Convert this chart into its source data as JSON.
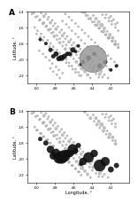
{
  "longitude_range": [
    -51,
    -40
  ],
  "latitude_range": [
    -23,
    -14
  ],
  "xticks": [
    -50,
    -48,
    -46,
    -44,
    -42
  ],
  "yticks": [
    -22,
    -20,
    -18,
    -16,
    -14
  ],
  "xlabel": "Longitude, °",
  "ylabel": "Latitude, °",
  "panel_A_label": "A",
  "panel_B_label": "B",
  "background_color": "#ffffff",
  "gray_color": "#aaaaaa",
  "black_color": "#111111",
  "cities_A_gray_lon": [
    -50.5,
    -50.1,
    -49.7,
    -49.3,
    -49.0,
    -48.7,
    -48.4,
    -48.1,
    -47.8,
    -47.5,
    -47.2,
    -46.9,
    -46.6,
    -46.3,
    -46.0,
    -45.7,
    -45.4,
    -45.1,
    -44.8,
    -44.5,
    -44.2,
    -43.9,
    -43.6,
    -43.3,
    -43.0,
    -42.7,
    -42.4,
    -42.1,
    -41.8,
    -41.5,
    -41.2,
    -49.5,
    -49.2,
    -48.8,
    -48.5,
    -48.2,
    -47.9,
    -47.5,
    -47.2,
    -46.9,
    -46.5,
    -46.2,
    -45.9,
    -45.5,
    -45.2,
    -44.9,
    -44.5,
    -44.2,
    -43.9,
    -43.5,
    -43.2,
    -42.9,
    -42.5,
    -42.2,
    -41.9,
    -41.5,
    -50.2,
    -49.9,
    -49.5,
    -49.2,
    -48.8,
    -48.5,
    -48.2,
    -47.8,
    -47.5,
    -47.2,
    -46.8,
    -46.5,
    -46.2,
    -45.8,
    -45.5,
    -45.2,
    -44.8,
    -44.5,
    -44.2,
    -43.8,
    -43.5,
    -43.2,
    -42.8,
    -42.5,
    -42.2,
    -41.8,
    -41.5,
    -41.2,
    -49.0,
    -48.7,
    -48.3,
    -48.0,
    -47.7,
    -47.3,
    -47.0,
    -46.7,
    -46.3,
    -46.0,
    -45.7,
    -45.3,
    -45.0,
    -44.7,
    -44.3,
    -44.0,
    -43.7,
    -43.3,
    -43.0,
    -42.7,
    -42.3,
    -42.0,
    -41.7,
    -41.3,
    -50.3,
    -49.9,
    -49.6,
    -49.2,
    -48.9,
    -48.5,
    -48.2,
    -47.8,
    -47.5,
    -47.1,
    -46.8,
    -46.4,
    -46.1,
    -45.7,
    -45.4,
    -45.0,
    -44.7,
    -44.3,
    -44.0,
    -43.6,
    -43.3,
    -42.9,
    -42.6,
    -42.2,
    -41.9,
    -41.5,
    -41.2,
    -50.0,
    -49.6,
    -49.3,
    -48.9,
    -48.6,
    -48.2,
    -47.9,
    -47.5,
    -47.2,
    -46.8,
    -46.5,
    -46.1,
    -45.8,
    -45.4,
    -45.1,
    -44.7,
    -44.4,
    -44.0,
    -43.7,
    -43.3,
    -43.0,
    -42.6,
    -42.3,
    -41.9,
    -41.6,
    -41.2,
    -49.7,
    -49.3,
    -49.0,
    -48.6,
    -48.3,
    -47.9,
    -47.6,
    -47.2,
    -46.9,
    -46.5,
    -46.2,
    -45.8,
    -45.5,
    -45.1,
    -44.8,
    -44.4,
    -44.1,
    -43.7,
    -43.4,
    -43.0,
    -42.7,
    -42.3,
    -42.0,
    -41.6,
    -41.3,
    -48.5,
    -48.2,
    -47.8,
    -47.5,
    -47.2,
    -46.8,
    -46.5,
    -46.2,
    -45.8,
    -45.5,
    -45.2,
    -44.8,
    -44.5,
    -44.2,
    -43.8,
    -43.5,
    -43.2,
    -42.8,
    -42.5,
    -42.2,
    -41.8,
    -41.5
  ],
  "cities_A_gray_lat": [
    -14.3,
    -14.7,
    -15.1,
    -15.5,
    -15.9,
    -16.3,
    -16.7,
    -17.1,
    -17.5,
    -17.9,
    -18.3,
    -18.7,
    -19.1,
    -19.5,
    -19.9,
    -20.3,
    -20.7,
    -21.1,
    -21.5,
    -21.9,
    -22.3,
    -14.5,
    -14.9,
    -15.3,
    -15.7,
    -16.1,
    -16.5,
    -16.9,
    -17.3,
    -17.7,
    -18.1,
    -14.2,
    -14.6,
    -15.0,
    -15.4,
    -15.8,
    -16.2,
    -16.6,
    -17.0,
    -17.4,
    -17.8,
    -18.2,
    -18.6,
    -19.0,
    -19.4,
    -19.8,
    -20.2,
    -20.6,
    -21.0,
    -21.4,
    -21.8,
    -22.2,
    -14.4,
    -14.8,
    -15.2,
    -15.6,
    -16.0,
    -16.4,
    -16.8,
    -17.2,
    -17.6,
    -18.0,
    -18.4,
    -18.8,
    -19.2,
    -19.6,
    -20.0,
    -20.4,
    -20.8,
    -21.2,
    -21.6,
    -22.0,
    -14.1,
    -14.5,
    -14.9,
    -15.3,
    -15.7,
    -16.1,
    -16.5,
    -16.9,
    -17.3,
    -17.7,
    -18.1,
    -18.5,
    -14.3,
    -14.7,
    -15.1,
    -15.5,
    -15.9,
    -16.3,
    -16.7,
    -17.1,
    -17.5,
    -17.9,
    -18.3,
    -18.7,
    -19.1,
    -19.5,
    -19.9,
    -20.3,
    -20.7,
    -21.1,
    -21.5,
    -21.9,
    -22.3,
    -14.6,
    -15.0,
    -15.4,
    -14.2,
    -14.6,
    -15.0,
    -15.4,
    -15.8,
    -16.2,
    -16.6,
    -17.0,
    -17.4,
    -17.8,
    -18.2,
    -18.6,
    -19.0,
    -19.4,
    -19.8,
    -20.2,
    -20.6,
    -21.0,
    -21.4,
    -21.8,
    -22.2,
    -14.4,
    -14.8,
    -15.2,
    -15.6,
    -16.0,
    -16.4,
    -16.8,
    -17.2,
    -17.6,
    -18.0,
    -18.4,
    -18.8,
    -19.2,
    -19.6,
    -20.0,
    -20.4,
    -20.8,
    -21.2,
    -21.6,
    -22.0,
    -14.1,
    -14.5,
    -14.9,
    -15.3,
    -15.7,
    -16.1,
    -16.5,
    -16.9,
    -17.3,
    -17.7,
    -18.1,
    -18.5,
    -18.9,
    -19.3,
    -19.7,
    -20.1,
    -20.5,
    -20.9,
    -21.3,
    -21.7,
    -14.3,
    -14.7,
    -15.1,
    -15.5,
    -15.9,
    -16.3,
    -16.7,
    -17.1,
    -17.5,
    -17.9,
    -18.3,
    -18.7,
    -19.1,
    -19.5,
    -19.9,
    -20.3,
    -20.7,
    -21.1,
    -21.5,
    -21.9,
    -22.3,
    -15.2,
    -15.6,
    -16.0,
    -16.4,
    -16.8,
    -17.2,
    -17.6,
    -18.0,
    -18.4,
    -18.8,
    -19.2,
    -19.6,
    -20.0,
    -20.4,
    -20.8,
    -21.2,
    -21.6,
    -22.0
  ],
  "cities_A_gray_size": [
    2,
    2,
    2,
    3,
    2,
    3,
    2,
    3,
    2,
    3,
    2,
    3,
    2,
    3,
    2,
    3,
    3,
    4,
    3,
    3,
    2,
    2,
    3,
    3,
    4,
    3,
    2,
    3,
    3,
    2,
    2,
    2,
    3,
    2,
    3,
    2,
    3,
    2,
    3,
    2,
    3,
    2,
    3,
    2,
    3,
    2,
    3,
    2,
    3,
    2,
    3,
    2,
    2,
    2,
    2,
    2,
    2,
    2,
    2,
    2,
    2,
    2,
    2,
    2,
    2,
    2,
    2,
    2,
    2,
    2,
    2,
    2,
    3,
    2,
    3,
    2,
    3,
    2,
    3,
    2,
    3,
    2,
    3,
    2,
    2,
    2,
    2,
    2,
    2,
    2,
    2,
    2,
    2,
    2,
    2,
    2,
    2,
    2,
    2,
    2,
    2,
    2,
    2,
    2,
    2,
    2,
    2,
    2,
    2,
    2,
    2,
    2,
    2,
    2,
    2,
    2,
    2,
    2,
    2,
    2,
    2,
    2,
    2,
    2,
    2,
    2,
    2,
    2,
    2,
    2,
    2,
    2,
    2,
    2,
    2,
    2,
    2,
    2,
    2,
    2,
    2,
    2,
    2,
    2,
    2,
    2,
    2,
    2,
    2,
    2,
    2,
    2,
    2,
    2,
    2,
    2,
    2,
    2,
    2,
    2,
    2,
    2,
    2,
    2,
    2,
    2,
    2,
    2,
    2,
    2,
    2,
    2,
    2,
    2,
    2,
    2,
    2,
    2,
    2,
    2,
    2,
    2,
    2,
    2,
    2,
    2,
    2,
    2,
    2,
    2,
    2,
    2,
    2,
    2,
    2,
    2,
    2,
    2,
    2,
    2,
    2,
    2,
    2,
    2,
    2,
    2
  ],
  "cities_A_black_lon": [
    -49.6,
    -49.0,
    -48.5,
    -47.9,
    -47.3,
    -46.7,
    -46.1,
    -45.5,
    -45.0,
    -44.4,
    -43.8,
    -43.2,
    -42.6,
    -42.0,
    -41.4,
    -48.2,
    -47.6,
    -47.0,
    -46.4,
    -45.8,
    -45.2
  ],
  "cities_A_black_lat": [
    -17.5,
    -18.0,
    -18.8,
    -19.3,
    -19.8,
    -19.3,
    -18.8,
    -18.3,
    -20.3,
    -19.8,
    -19.3,
    -20.8,
    -20.3,
    -21.3,
    -20.8,
    -19.6,
    -19.9,
    -19.6,
    -19.3,
    -19.0,
    -20.6
  ],
  "cities_A_black_size": [
    3,
    3,
    4,
    5,
    6,
    4,
    5,
    3,
    4,
    5,
    4,
    5,
    4,
    3,
    3,
    4,
    5,
    5,
    4,
    3,
    3
  ],
  "cities_A_bh_lon": -43.93,
  "cities_A_bh_lat": -19.92,
  "cities_A_bh_size": 38,
  "cities_B_gray_lon": [
    -50.5,
    -50.1,
    -49.7,
    -49.3,
    -49.0,
    -48.7,
    -48.4,
    -48.1,
    -47.8,
    -47.5,
    -47.2,
    -46.9,
    -46.6,
    -46.3,
    -46.0,
    -45.7,
    -45.4,
    -45.1,
    -44.8,
    -44.5,
    -44.2,
    -43.9,
    -43.6,
    -43.3,
    -43.0,
    -42.7,
    -42.4,
    -42.1,
    -41.8,
    -41.5,
    -49.5,
    -49.2,
    -48.8,
    -48.5,
    -48.2,
    -47.9,
    -47.5,
    -47.2,
    -46.9,
    -46.5,
    -46.2,
    -45.9,
    -45.5,
    -45.2,
    -44.9,
    -44.5,
    -44.2,
    -43.9,
    -43.5,
    -43.2,
    -42.9,
    -42.5,
    -42.2,
    -41.9,
    -41.5,
    -50.2,
    -49.9,
    -49.5,
    -49.2,
    -48.8,
    -48.5,
    -48.2,
    -47.8,
    -47.5,
    -47.2,
    -46.8,
    -46.5,
    -46.2,
    -45.8,
    -45.5,
    -45.2,
    -44.8,
    -44.5,
    -44.2,
    -43.8,
    -43.5,
    -43.2,
    -42.8,
    -42.5,
    -42.2,
    -41.8,
    -41.5,
    -49.0,
    -48.7,
    -48.3,
    -48.0,
    -47.7,
    -47.3,
    -47.0,
    -46.7,
    -46.3,
    -46.0,
    -45.7,
    -45.3,
    -45.0,
    -44.7,
    -44.3,
    -44.0,
    -43.7,
    -43.3,
    -43.0,
    -42.7,
    -42.3,
    -42.0,
    -41.7,
    -50.3,
    -49.9,
    -49.6,
    -49.2,
    -48.9,
    -48.5,
    -48.2,
    -47.8,
    -47.5,
    -47.1,
    -46.8,
    -46.4,
    -46.1,
    -45.7,
    -45.4,
    -45.0,
    -44.7,
    -44.3,
    -44.0,
    -43.6,
    -43.3,
    -42.9,
    -42.6,
    -42.2,
    -41.9,
    -41.5,
    -50.0,
    -49.6,
    -49.3,
    -48.9,
    -48.6,
    -48.2,
    -47.9,
    -47.5,
    -47.2,
    -46.8,
    -46.5,
    -46.1,
    -45.8,
    -45.4
  ],
  "cities_B_gray_lat": [
    -14.3,
    -14.7,
    -15.1,
    -15.5,
    -15.9,
    -16.3,
    -16.7,
    -17.1,
    -17.5,
    -17.9,
    -18.3,
    -18.7,
    -19.1,
    -19.5,
    -19.9,
    -20.3,
    -20.7,
    -21.1,
    -21.5,
    -21.9,
    -22.3,
    -14.5,
    -14.9,
    -15.3,
    -15.7,
    -16.1,
    -16.5,
    -16.9,
    -17.3,
    -17.7,
    -14.2,
    -14.6,
    -15.0,
    -15.4,
    -15.8,
    -16.2,
    -16.6,
    -17.0,
    -17.4,
    -17.8,
    -18.2,
    -18.6,
    -19.0,
    -19.4,
    -19.8,
    -20.2,
    -20.6,
    -21.0,
    -21.4,
    -21.8,
    -22.2,
    -14.4,
    -14.8,
    -15.2,
    -15.6,
    -16.0,
    -16.4,
    -16.8,
    -17.2,
    -17.6,
    -18.0,
    -18.4,
    -18.8,
    -19.2,
    -19.6,
    -20.0,
    -20.4,
    -20.8,
    -21.2,
    -21.6,
    -22.0,
    -14.1,
    -14.5,
    -14.9,
    -15.3,
    -15.7,
    -16.1,
    -16.5,
    -16.9,
    -17.3,
    -17.7,
    -18.1,
    -14.3,
    -14.7,
    -15.1,
    -15.5,
    -15.9,
    -16.3,
    -16.7,
    -17.1,
    -17.5,
    -17.9,
    -18.3,
    -18.7,
    -19.1,
    -19.5,
    -19.9,
    -20.3,
    -20.7,
    -21.1,
    -21.5,
    -21.9,
    -22.3,
    -14.6,
    -15.0,
    -14.2,
    -14.6,
    -15.0,
    -15.4,
    -15.8,
    -16.2,
    -16.6,
    -17.0,
    -17.4,
    -17.8,
    -18.2,
    -18.6,
    -19.0,
    -19.4,
    -19.8,
    -20.2,
    -20.6,
    -21.0,
    -21.4,
    -21.8,
    -22.2,
    -14.4,
    -14.8,
    -15.2,
    -15.6,
    -16.0,
    -16.4,
    -16.8,
    -17.2,
    -17.6,
    -18.0,
    -18.4,
    -18.8,
    -19.2,
    -19.6,
    -20.0,
    -20.4,
    -20.8,
    -21.2,
    -21.6
  ],
  "cities_B_gray_size": [
    2,
    2,
    2,
    3,
    2,
    3,
    2,
    3,
    2,
    3,
    2,
    3,
    2,
    3,
    2,
    3,
    3,
    4,
    3,
    3,
    2,
    2,
    3,
    3,
    4,
    3,
    2,
    3,
    3,
    2,
    2,
    3,
    2,
    3,
    2,
    3,
    2,
    3,
    2,
    3,
    2,
    3,
    2,
    3,
    2,
    3,
    2,
    3,
    2,
    3,
    2,
    2,
    2,
    2,
    2,
    2,
    2,
    2,
    2,
    2,
    2,
    2,
    2,
    2,
    2,
    2,
    2,
    2,
    2,
    2,
    2,
    3,
    2,
    3,
    2,
    3,
    2,
    3,
    2,
    3,
    2,
    3,
    2,
    2,
    2,
    2,
    2,
    2,
    2,
    2,
    2,
    2,
    2,
    2,
    2,
    2,
    2,
    2,
    2,
    2,
    2,
    2,
    2,
    2,
    2,
    2,
    2,
    2,
    2,
    2,
    2,
    2,
    2,
    2,
    2,
    2,
    2,
    2,
    2,
    2,
    2,
    2,
    2,
    2,
    2,
    2,
    2,
    2,
    2,
    2,
    2,
    2,
    2,
    2,
    2,
    2,
    2,
    2,
    2,
    2,
    2,
    2,
    2,
    2,
    2
  ],
  "cities_B_black_lon": [
    -49.6,
    -49.0,
    -48.5,
    -47.9,
    -47.3,
    -46.7,
    -46.1,
    -45.5,
    -45.0,
    -44.4,
    -43.8,
    -43.2,
    -42.6,
    -42.0,
    -41.4,
    -48.2,
    -47.6,
    -47.0,
    -46.4,
    -45.8,
    -45.2
  ],
  "cities_B_black_lat": [
    -17.5,
    -18.0,
    -18.8,
    -19.3,
    -19.8,
    -19.3,
    -18.8,
    -18.3,
    -20.3,
    -19.8,
    -19.3,
    -20.8,
    -20.3,
    -21.3,
    -20.8,
    -19.6,
    -19.9,
    -19.6,
    -19.3,
    -19.0,
    -20.6
  ],
  "cities_B_black_size": [
    4,
    5,
    8,
    10,
    15,
    8,
    12,
    5,
    8,
    12,
    8,
    14,
    10,
    6,
    5,
    8,
    12,
    14,
    8,
    5,
    4
  ]
}
